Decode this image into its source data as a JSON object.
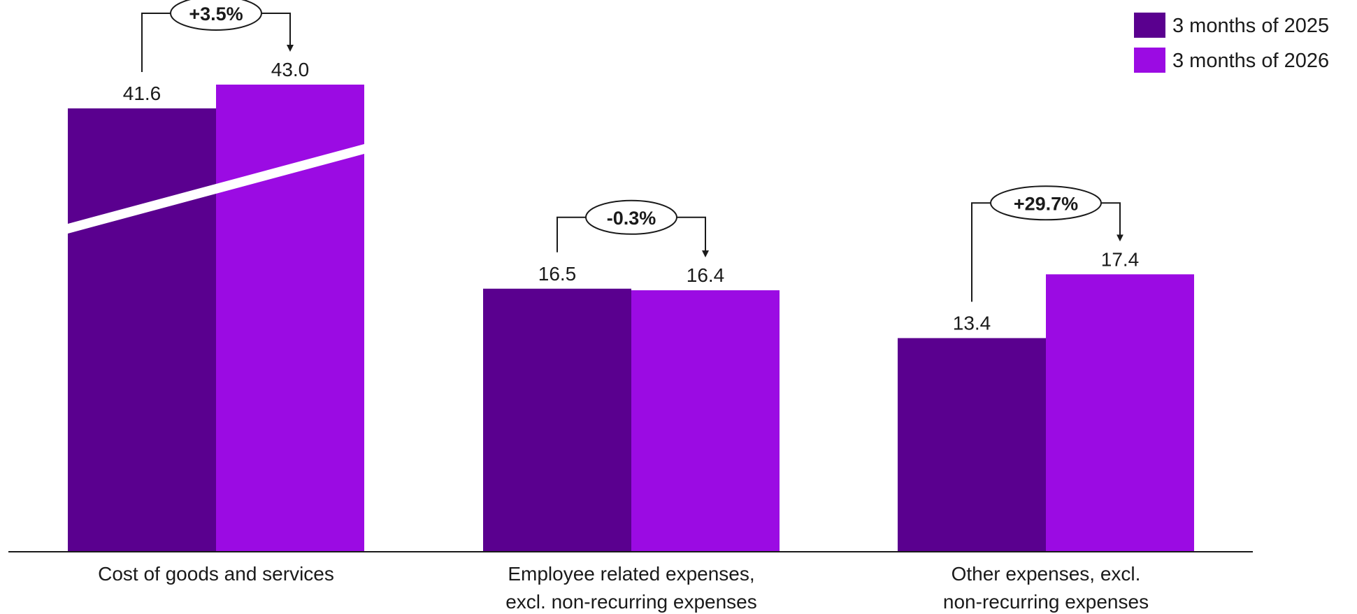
{
  "chart_data": {
    "type": "bar",
    "title": "",
    "xlabel": "",
    "ylabel": "",
    "categories": [
      [
        "Cost of goods and services"
      ],
      [
        "Employee related expenses,",
        "excl. non-recurring expenses"
      ],
      [
        "Other expenses, excl.",
        "non-recurring expenses"
      ]
    ],
    "series": [
      {
        "name": "3 months of 2025",
        "color": "#5a008f",
        "values": [
          41.6,
          16.5,
          13.4
        ],
        "labels": [
          "41.6",
          "16.5",
          "13.4"
        ]
      },
      {
        "name": "3 months of 2026",
        "color": "#9b0be3",
        "values": [
          43.0,
          16.4,
          17.4
        ],
        "labels": [
          "43.0",
          "16.4",
          "17.4"
        ]
      }
    ],
    "changes": [
      "+3.5%",
      "-0.3%",
      "+29.7%"
    ],
    "axis_break": {
      "category_index": 0
    },
    "legend_position": "top-right",
    "grid": false
  }
}
